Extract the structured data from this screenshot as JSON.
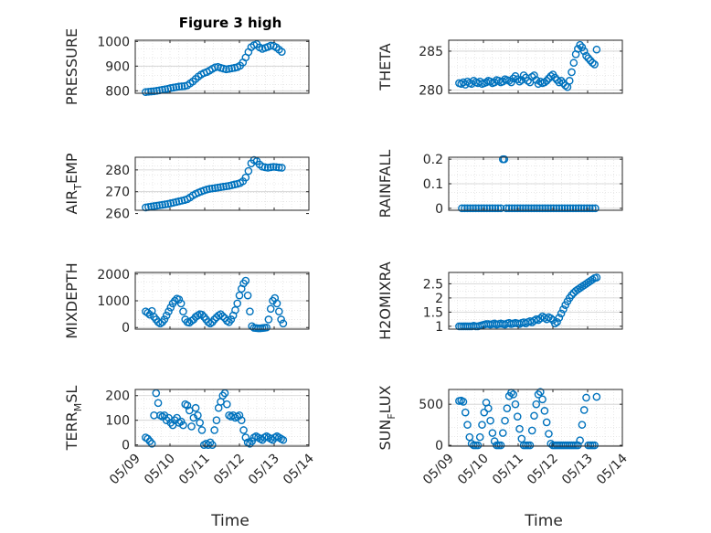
{
  "figure": {
    "title": "Figure 3 high",
    "xlabel": "Time"
  },
  "colors": {
    "marker": "#0072BD",
    "axis": "#262626",
    "grid": "#d9d9d9",
    "box": "#262626"
  },
  "chart_data": [
    {
      "type": "scatter",
      "ylabel": "PRESSURE",
      "ylim": [
        790,
        1005
      ],
      "yticks": [
        800,
        900,
        1000
      ],
      "ytick_labels": [
        "800",
        "900",
        "1000"
      ],
      "xlim": [
        "05/09",
        "05/14"
      ],
      "xticks": [],
      "xtick_labels": [],
      "grid": true,
      "x": [
        9.3,
        9.38,
        9.46,
        9.54,
        9.62,
        9.7,
        9.78,
        9.86,
        9.94,
        10.02,
        10.1,
        10.18,
        10.26,
        10.34,
        10.42,
        10.5,
        10.58,
        10.66,
        10.74,
        10.82,
        10.9,
        10.98,
        11.06,
        11.14,
        11.22,
        11.3,
        11.38,
        11.46,
        11.54,
        11.62,
        11.7,
        11.78,
        11.86,
        11.94,
        12.02,
        12.1,
        12.18,
        12.26,
        12.34,
        12.42,
        12.5,
        12.58,
        12.66,
        12.74,
        12.82,
        12.9,
        12.98,
        13.06,
        13.14,
        13.22
      ],
      "y": [
        795,
        796,
        797,
        798,
        800,
        802,
        804,
        806,
        808,
        811,
        813,
        815,
        817,
        818,
        819,
        822,
        830,
        838,
        848,
        858,
        866,
        872,
        876,
        882,
        889,
        895,
        897,
        893,
        890,
        887,
        889,
        891,
        893,
        896,
        902,
        915,
        935,
        957,
        977,
        985,
        989,
        976,
        970,
        974,
        978,
        983,
        982,
        976,
        967,
        958
      ]
    },
    {
      "type": "scatter",
      "ylabel": "THETA",
      "ylim": [
        279.6,
        286.4
      ],
      "yticks": [
        280,
        285
      ],
      "ytick_labels": [
        "280",
        "285"
      ],
      "xlim": [
        "05/09",
        "05/14"
      ],
      "xticks": [],
      "xtick_labels": [],
      "grid": true,
      "x": [
        9.3,
        9.36,
        9.42,
        9.48,
        9.54,
        9.6,
        9.66,
        9.72,
        9.78,
        9.84,
        9.9,
        9.96,
        10.02,
        10.08,
        10.14,
        10.2,
        10.26,
        10.32,
        10.38,
        10.44,
        10.5,
        10.56,
        10.62,
        10.68,
        10.74,
        10.8,
        10.86,
        10.92,
        10.98,
        11.04,
        11.1,
        11.16,
        11.22,
        11.28,
        11.34,
        11.4,
        11.46,
        11.52,
        11.58,
        11.64,
        11.7,
        11.76,
        11.82,
        11.88,
        11.94,
        12.0,
        12.06,
        12.12,
        12.18,
        12.24,
        12.3,
        12.36,
        12.42,
        12.48,
        12.54,
        12.6,
        12.66,
        12.72,
        12.78,
        12.84,
        12.9,
        12.96,
        13.02,
        13.08,
        13.14,
        13.2,
        13.26
      ],
      "y": [
        280.9,
        280.8,
        281.0,
        280.7,
        281.1,
        280.9,
        280.8,
        281.2,
        281.0,
        280.9,
        281.1,
        280.8,
        280.9,
        281.0,
        281.2,
        281.1,
        280.9,
        281.0,
        281.3,
        281.2,
        281.0,
        281.1,
        281.4,
        281.3,
        281.2,
        281.0,
        281.5,
        281.8,
        281.4,
        281.1,
        281.3,
        281.9,
        281.6,
        281.2,
        281.0,
        281.7,
        281.9,
        281.3,
        280.8,
        281.1,
        280.9,
        281.0,
        281.2,
        281.5,
        281.8,
        282.0,
        281.6,
        281.3,
        281.0,
        281.2,
        280.9,
        280.6,
        280.4,
        281.2,
        282.3,
        283.5,
        284.6,
        285.3,
        285.8,
        285.5,
        285.0,
        284.4,
        284.1,
        283.8,
        283.5,
        283.3,
        285.2
      ]
    },
    {
      "type": "scatter",
      "ylabel": "AIR",
      "ylabel_sub": "T",
      "ylabel_rest": "EMP",
      "ylim": [
        261.5,
        285.8
      ],
      "yticks": [
        260,
        270,
        280
      ],
      "ytick_labels": [
        "260",
        "270",
        "280"
      ],
      "xlim": [
        "05/09",
        "05/14"
      ],
      "xticks": [],
      "xtick_labels": [],
      "grid": true,
      "x": [
        9.3,
        9.38,
        9.46,
        9.54,
        9.62,
        9.7,
        9.78,
        9.86,
        9.94,
        10.02,
        10.1,
        10.18,
        10.26,
        10.34,
        10.42,
        10.5,
        10.58,
        10.66,
        10.74,
        10.82,
        10.9,
        10.98,
        11.06,
        11.14,
        11.22,
        11.3,
        11.38,
        11.46,
        11.54,
        11.62,
        11.7,
        11.78,
        11.86,
        11.94,
        12.02,
        12.1,
        12.18,
        12.26,
        12.34,
        12.42,
        12.5,
        12.58,
        12.66,
        12.74,
        12.82,
        12.9,
        12.98,
        13.06,
        13.14,
        13.22
      ],
      "y": [
        262.8,
        263.0,
        263.2,
        263.4,
        263.6,
        263.8,
        264.0,
        264.2,
        264.4,
        264.7,
        265.0,
        265.3,
        265.6,
        265.9,
        266.2,
        266.6,
        267.4,
        268.3,
        269.0,
        269.6,
        270.1,
        270.6,
        271.0,
        271.3,
        271.5,
        271.7,
        271.9,
        272.1,
        272.3,
        272.5,
        272.7,
        273.0,
        273.3,
        273.6,
        274.0,
        274.8,
        276.5,
        279.5,
        283.0,
        284.5,
        284.0,
        282.5,
        281.5,
        281.2,
        281.0,
        281.2,
        281.4,
        281.3,
        281.1,
        281.0
      ]
    },
    {
      "type": "scatter",
      "ylabel": "RAINFALL",
      "ylim": [
        -0.008,
        0.208
      ],
      "yticks": [
        0,
        0.1,
        0.2
      ],
      "ytick_labels": [
        "0",
        "0.1",
        "0.2"
      ],
      "xlim": [
        "05/09",
        "05/14"
      ],
      "xticks": [],
      "xtick_labels": [],
      "grid": true,
      "x": [
        9.38,
        9.46,
        9.54,
        9.62,
        9.7,
        9.78,
        9.86,
        9.94,
        10.02,
        10.1,
        10.18,
        10.26,
        10.34,
        10.42,
        10.5,
        10.56,
        10.6,
        10.66,
        10.74,
        10.82,
        10.9,
        10.98,
        11.06,
        11.14,
        11.22,
        11.3,
        11.38,
        11.46,
        11.54,
        11.62,
        11.7,
        11.78,
        11.86,
        11.94,
        12.02,
        12.1,
        12.18,
        12.26,
        12.34,
        12.42,
        12.5,
        12.58,
        12.66,
        12.74,
        12.82,
        12.9,
        12.98,
        13.06,
        13.14,
        13.22
      ],
      "y": [
        0,
        0,
        0,
        0,
        0,
        0,
        0,
        0,
        0,
        0,
        0,
        0,
        0,
        0,
        0,
        0.2,
        0.2,
        0,
        0,
        0,
        0,
        0,
        0,
        0,
        0,
        0,
        0,
        0,
        0,
        0,
        0,
        0,
        0,
        0,
        0,
        0,
        0,
        0,
        0,
        0,
        0,
        0,
        0,
        0,
        0,
        0,
        0,
        0,
        0,
        0
      ]
    },
    {
      "type": "scatter",
      "ylabel": "MIXDEPTH",
      "ylim": [
        -60,
        2060
      ],
      "yticks": [
        0,
        1000,
        2000
      ],
      "ytick_labels": [
        "0",
        "1000",
        "2000"
      ],
      "xlim": [
        "05/09",
        "05/14"
      ],
      "xticks": [],
      "xtick_labels": [],
      "grid": true,
      "x": [
        9.3,
        9.36,
        9.42,
        9.48,
        9.54,
        9.6,
        9.66,
        9.72,
        9.78,
        9.84,
        9.9,
        9.96,
        10.02,
        10.08,
        10.14,
        10.2,
        10.26,
        10.32,
        10.38,
        10.44,
        10.5,
        10.56,
        10.62,
        10.68,
        10.74,
        10.8,
        10.86,
        10.92,
        10.98,
        11.04,
        11.1,
        11.16,
        11.22,
        11.28,
        11.34,
        11.4,
        11.46,
        11.52,
        11.58,
        11.64,
        11.7,
        11.76,
        11.82,
        11.88,
        11.94,
        12.0,
        12.06,
        12.12,
        12.18,
        12.24,
        12.3,
        12.36,
        12.42,
        12.48,
        12.54,
        12.6,
        12.66,
        12.72,
        12.78,
        12.84,
        12.9,
        12.96,
        13.02,
        13.08,
        13.14,
        13.2,
        13.26
      ],
      "y": [
        600,
        550,
        480,
        620,
        400,
        300,
        200,
        150,
        200,
        300,
        450,
        600,
        750,
        900,
        1000,
        1080,
        1050,
        900,
        600,
        300,
        200,
        180,
        250,
        300,
        400,
        450,
        500,
        480,
        400,
        300,
        200,
        150,
        200,
        300,
        380,
        450,
        500,
        420,
        350,
        250,
        200,
        300,
        450,
        650,
        900,
        1200,
        1450,
        1650,
        1750,
        1200,
        600,
        50,
        -10,
        -20,
        -30,
        -30,
        -20,
        -10,
        0,
        300,
        700,
        1000,
        1100,
        900,
        600,
        300,
        150
      ]
    },
    {
      "type": "scatter",
      "ylabel": "H2OMIXRA",
      "ylim": [
        0.9,
        2.9
      ],
      "yticks": [
        1,
        1.5,
        2,
        2.5
      ],
      "ytick_labels": [
        "1",
        "1.5",
        "2",
        "2.5"
      ],
      "xlim": [
        "05/09",
        "05/14"
      ],
      "xticks": [],
      "xtick_labels": [],
      "grid": true,
      "x": [
        9.3,
        9.36,
        9.42,
        9.48,
        9.54,
        9.6,
        9.66,
        9.72,
        9.78,
        9.84,
        9.9,
        9.96,
        10.02,
        10.08,
        10.14,
        10.2,
        10.26,
        10.32,
        10.38,
        10.44,
        10.5,
        10.56,
        10.62,
        10.68,
        10.74,
        10.8,
        10.86,
        10.92,
        10.98,
        11.04,
        11.1,
        11.16,
        11.22,
        11.28,
        11.34,
        11.4,
        11.46,
        11.52,
        11.58,
        11.64,
        11.7,
        11.76,
        11.82,
        11.88,
        11.94,
        12.0,
        12.06,
        12.12,
        12.18,
        12.24,
        12.3,
        12.36,
        12.42,
        12.48,
        12.54,
        12.6,
        12.66,
        12.72,
        12.78,
        12.84,
        12.9,
        12.96,
        13.02,
        13.08,
        13.14,
        13.2,
        13.26
      ],
      "y": [
        1.0,
        1.0,
        1.0,
        1.0,
        1.0,
        1.0,
        1.0,
        1.02,
        1.0,
        1.0,
        1.02,
        1.04,
        1.06,
        1.08,
        1.08,
        1.06,
        1.08,
        1.1,
        1.06,
        1.08,
        1.1,
        1.08,
        1.06,
        1.1,
        1.12,
        1.08,
        1.1,
        1.12,
        1.1,
        1.08,
        1.12,
        1.14,
        1.1,
        1.15,
        1.18,
        1.14,
        1.2,
        1.25,
        1.22,
        1.28,
        1.35,
        1.3,
        1.25,
        1.32,
        1.28,
        1.22,
        1.1,
        1.15,
        1.3,
        1.45,
        1.6,
        1.75,
        1.88,
        2.0,
        2.1,
        2.18,
        2.25,
        2.3,
        2.35,
        2.4,
        2.45,
        2.5,
        2.55,
        2.6,
        2.65,
        2.7,
        2.72
      ]
    },
    {
      "type": "scatter",
      "ylabel": "TERR",
      "ylabel_sub": "M",
      "ylabel_rest": "SL",
      "ylim": [
        -5,
        225
      ],
      "yticks": [
        0,
        100,
        200
      ],
      "ytick_labels": [
        "0",
        "100",
        "200"
      ],
      "xlim": [
        "05/09",
        "05/14"
      ],
      "xticks": [
        "05/09",
        "05/10",
        "05/11",
        "05/12",
        "05/13",
        "05/14"
      ],
      "xtick_labels": [
        "05/09",
        "05/10",
        "05/11",
        "05/12",
        "05/13",
        "05/14"
      ],
      "grid": true,
      "x": [
        9.3,
        9.36,
        9.42,
        9.48,
        9.54,
        9.6,
        9.66,
        9.72,
        9.78,
        9.84,
        9.9,
        9.96,
        10.02,
        10.08,
        10.14,
        10.2,
        10.26,
        10.32,
        10.38,
        10.44,
        10.5,
        10.56,
        10.62,
        10.68,
        10.74,
        10.8,
        10.86,
        10.92,
        10.98,
        11.04,
        11.1,
        11.16,
        11.22,
        11.28,
        11.34,
        11.4,
        11.46,
        11.52,
        11.58,
        11.64,
        11.7,
        11.76,
        11.82,
        11.88,
        11.94,
        12.0,
        12.06,
        12.12,
        12.18,
        12.24,
        12.3,
        12.36,
        12.42,
        12.48,
        12.54,
        12.6,
        12.66,
        12.72,
        12.78,
        12.84,
        12.9,
        12.96,
        13.02,
        13.08,
        13.14,
        13.2,
        13.26
      ],
      "y": [
        30,
        25,
        15,
        5,
        120,
        210,
        170,
        120,
        115,
        120,
        100,
        110,
        90,
        80,
        100,
        110,
        90,
        95,
        80,
        165,
        160,
        140,
        75,
        110,
        150,
        120,
        90,
        60,
        0,
        5,
        0,
        10,
        0,
        60,
        100,
        150,
        175,
        200,
        210,
        165,
        120,
        115,
        120,
        110,
        115,
        120,
        100,
        60,
        30,
        10,
        5,
        15,
        30,
        35,
        30,
        25,
        20,
        30,
        35,
        30,
        25,
        20,
        30,
        35,
        30,
        25,
        20
      ]
    },
    {
      "type": "scatter",
      "ylabel": "SUN",
      "ylabel_sub": "F",
      "ylabel_rest": "LUX",
      "ylim": [
        -10,
        680
      ],
      "yticks": [
        0,
        500
      ],
      "ytick_labels": [
        "0",
        "500"
      ],
      "xlim": [
        "05/09",
        "05/14"
      ],
      "xticks": [
        "05/09",
        "05/10",
        "05/11",
        "05/12",
        "05/13",
        "05/14"
      ],
      "xtick_labels": [
        "05/09",
        "05/10",
        "05/11",
        "05/12",
        "05/13",
        "05/14"
      ],
      "grid": true,
      "x": [
        9.3,
        9.36,
        9.42,
        9.48,
        9.54,
        9.6,
        9.66,
        9.72,
        9.78,
        9.84,
        9.9,
        9.96,
        10.02,
        10.08,
        10.14,
        10.2,
        10.26,
        10.32,
        10.38,
        10.44,
        10.5,
        10.56,
        10.62,
        10.68,
        10.74,
        10.8,
        10.86,
        10.92,
        10.98,
        11.04,
        11.1,
        11.16,
        11.22,
        11.28,
        11.34,
        11.4,
        11.46,
        11.52,
        11.58,
        11.64,
        11.7,
        11.76,
        11.82,
        11.88,
        11.94,
        12.0,
        12.06,
        12.12,
        12.18,
        12.24,
        12.3,
        12.36,
        12.42,
        12.48,
        12.54,
        12.6,
        12.66,
        12.72,
        12.78,
        12.84,
        12.9,
        12.96,
        13.02,
        13.08,
        13.14,
        13.2,
        13.26
      ],
      "y": [
        540,
        545,
        530,
        400,
        250,
        100,
        20,
        0,
        0,
        0,
        100,
        250,
        400,
        520,
        450,
        300,
        150,
        50,
        0,
        0,
        0,
        150,
        300,
        450,
        600,
        640,
        620,
        500,
        350,
        200,
        80,
        0,
        0,
        0,
        0,
        180,
        360,
        500,
        620,
        650,
        560,
        420,
        280,
        140,
        20,
        0,
        0,
        0,
        0,
        0,
        0,
        0,
        0,
        0,
        0,
        0,
        0,
        0,
        60,
        250,
        430,
        580,
        0,
        0,
        0,
        0,
        590
      ]
    }
  ]
}
